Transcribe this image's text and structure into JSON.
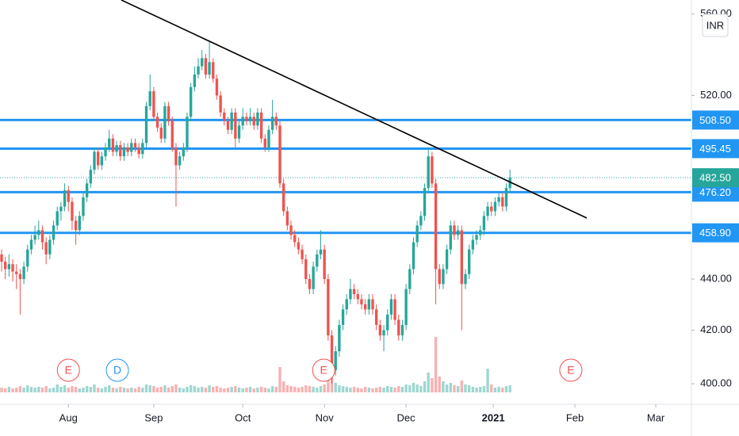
{
  "chart_data": {
    "type": "candlestick",
    "currency": "INR",
    "log_scale": true,
    "up_color": "#26a69a",
    "down_color": "#ef5350",
    "level_color": "#2196f3",
    "ylim": [
      392.6,
      567.2
    ],
    "yticks": [
      {
        "value": 400,
        "label": "400.00"
      },
      {
        "value": 420,
        "label": "420.00"
      },
      {
        "value": 440,
        "label": "440.00"
      },
      {
        "value": 520,
        "label": "520.00"
      },
      {
        "value": 560,
        "label": "560.00"
      }
    ],
    "xlim": [
      -0.43,
      185.9
    ],
    "xticks": [
      {
        "value": 18,
        "label": "Aug"
      },
      {
        "value": 41,
        "label": "Sep"
      },
      {
        "value": 65,
        "label": "Oct"
      },
      {
        "value": 87,
        "label": "Nov"
      },
      {
        "value": 109,
        "label": "Dec"
      },
      {
        "value": 132.5,
        "label": "2021"
      },
      {
        "value": 154.5,
        "label": "Feb"
      },
      {
        "value": 176.3,
        "label": "Mar"
      }
    ],
    "levels": {
      "values": [
        508.5,
        495.45,
        476.2,
        458.9
      ],
      "value_labels": [
        "508.50",
        "495.45",
        "476.20",
        "458.90"
      ]
    },
    "last_price": {
      "value": 482.5,
      "label": "482.50"
    },
    "events": [
      {
        "label": "E",
        "x": 18,
        "color": "#ef5350"
      },
      {
        "label": "D",
        "x": 31.2,
        "color": "#2196f3"
      },
      {
        "label": "E",
        "x": 86.8,
        "color": "#ef5350"
      },
      {
        "label": "E",
        "x": 153.4,
        "color": "#ef5350"
      }
    ],
    "candles": [
      [
        450,
        452,
        443,
        447
      ],
      [
        447,
        449,
        440,
        444
      ],
      [
        444,
        450,
        441,
        446
      ],
      [
        446,
        448,
        439,
        443
      ],
      [
        443,
        446,
        436,
        442
      ],
      [
        442,
        444,
        426,
        440
      ],
      [
        440,
        447,
        438,
        445
      ],
      [
        445,
        454,
        443,
        452
      ],
      [
        452,
        458,
        450,
        456
      ],
      [
        456,
        462,
        454,
        458
      ],
      [
        458,
        464,
        456,
        460
      ],
      [
        460,
        462,
        452,
        455
      ],
      [
        455,
        457,
        446,
        450
      ],
      [
        450,
        458,
        448,
        456
      ],
      [
        456,
        464,
        454,
        462
      ],
      [
        462,
        470,
        460,
        468
      ],
      [
        468,
        472,
        464,
        470
      ],
      [
        470,
        480,
        468,
        477
      ],
      [
        477,
        479,
        468,
        472
      ],
      [
        472,
        474,
        460,
        464
      ],
      [
        464,
        466,
        454,
        460
      ],
      [
        460,
        468,
        458,
        466
      ],
      [
        466,
        476,
        464,
        474
      ],
      [
        474,
        482,
        472,
        480
      ],
      [
        480,
        488,
        478,
        486
      ],
      [
        486,
        496,
        484,
        494
      ],
      [
        494,
        496,
        486,
        488
      ],
      [
        488,
        494,
        486,
        492
      ],
      [
        492,
        498,
        490,
        496
      ],
      [
        496,
        504,
        494,
        500
      ],
      [
        500,
        502,
        492,
        494
      ],
      [
        494,
        499,
        492,
        497
      ],
      [
        497,
        499,
        490,
        492
      ],
      [
        492,
        498,
        490,
        496
      ],
      [
        496,
        498,
        492,
        494
      ],
      [
        494,
        500,
        492,
        498
      ],
      [
        498,
        500,
        494,
        496
      ],
      [
        496,
        498,
        491,
        493
      ],
      [
        493,
        500,
        491,
        498
      ],
      [
        498,
        517,
        496,
        515
      ],
      [
        515,
        530,
        513,
        522
      ],
      [
        522,
        524,
        508,
        510
      ],
      [
        510,
        512,
        503,
        505
      ],
      [
        505,
        507,
        498,
        500
      ],
      [
        500,
        517,
        498,
        515
      ],
      [
        515,
        517,
        506,
        508
      ],
      [
        508,
        510,
        494,
        496
      ],
      [
        496,
        498,
        470,
        488
      ],
      [
        488,
        494,
        486,
        492
      ],
      [
        492,
        498,
        490,
        496
      ],
      [
        496,
        512,
        494,
        510
      ],
      [
        510,
        526,
        508,
        524
      ],
      [
        524,
        534,
        522,
        530
      ],
      [
        530,
        538,
        528,
        534
      ],
      [
        534,
        542,
        532,
        538
      ],
      [
        538,
        540,
        528,
        530
      ],
      [
        530,
        546,
        528,
        536
      ],
      [
        536,
        538,
        526,
        528
      ],
      [
        528,
        530,
        518,
        520
      ],
      [
        520,
        522,
        510,
        512
      ],
      [
        512,
        514,
        506,
        508
      ],
      [
        508,
        510,
        502,
        504
      ],
      [
        504,
        514,
        502,
        512
      ],
      [
        512,
        514,
        496,
        500
      ],
      [
        500,
        508,
        498,
        506
      ],
      [
        506,
        514,
        504,
        510
      ],
      [
        510,
        512,
        506,
        508
      ],
      [
        508,
        514,
        506,
        510
      ],
      [
        510,
        512,
        504,
        506
      ],
      [
        506,
        514,
        504,
        512
      ],
      [
        512,
        514,
        498,
        500
      ],
      [
        500,
        502,
        494,
        496
      ],
      [
        496,
        506,
        494,
        504
      ],
      [
        504,
        518,
        502,
        510
      ],
      [
        510,
        512,
        504,
        506
      ],
      [
        506,
        508,
        478,
        480
      ],
      [
        480,
        482,
        466,
        468
      ],
      [
        468,
        470,
        460,
        462
      ],
      [
        462,
        464,
        456,
        458
      ],
      [
        458,
        460,
        453,
        455
      ],
      [
        455,
        457,
        450,
        452
      ],
      [
        452,
        454,
        446,
        448
      ],
      [
        448,
        450,
        438,
        440
      ],
      [
        440,
        442,
        434,
        436
      ],
      [
        436,
        447,
        434,
        445
      ],
      [
        445,
        452,
        443,
        450
      ],
      [
        450,
        460,
        448,
        452
      ],
      [
        452,
        454,
        438,
        440
      ],
      [
        440,
        442,
        416,
        418
      ],
      [
        418,
        420,
        400,
        405
      ],
      [
        405,
        414,
        403,
        412
      ],
      [
        412,
        424,
        410,
        422
      ],
      [
        422,
        430,
        420,
        428
      ],
      [
        428,
        434,
        426,
        432
      ],
      [
        432,
        440,
        430,
        436
      ],
      [
        436,
        438,
        432,
        434
      ],
      [
        434,
        436,
        430,
        432
      ],
      [
        432,
        434,
        428,
        430
      ],
      [
        430,
        432,
        426,
        428
      ],
      [
        428,
        434,
        426,
        432
      ],
      [
        432,
        434,
        426,
        428
      ],
      [
        428,
        430,
        420,
        422
      ],
      [
        422,
        424,
        416,
        418
      ],
      [
        418,
        422,
        412,
        420
      ],
      [
        420,
        428,
        418,
        426
      ],
      [
        426,
        434,
        424,
        432
      ],
      [
        432,
        434,
        422,
        424
      ],
      [
        424,
        426,
        416,
        418
      ],
      [
        418,
        424,
        416,
        422
      ],
      [
        422,
        438,
        420,
        436
      ],
      [
        436,
        446,
        434,
        444
      ],
      [
        444,
        457,
        442,
        455
      ],
      [
        455,
        464,
        453,
        462
      ],
      [
        462,
        468,
        460,
        466
      ],
      [
        466,
        480,
        464,
        478
      ],
      [
        478,
        496,
        476,
        492
      ],
      [
        492,
        494,
        478,
        480
      ],
      [
        480,
        482,
        430,
        444
      ],
      [
        444,
        446,
        436,
        438
      ],
      [
        438,
        446,
        436,
        444
      ],
      [
        444,
        454,
        442,
        452
      ],
      [
        452,
        464,
        450,
        462
      ],
      [
        462,
        464,
        456,
        458
      ],
      [
        458,
        462,
        456,
        460
      ],
      [
        460,
        462,
        420,
        438
      ],
      [
        438,
        444,
        436,
        442
      ],
      [
        442,
        454,
        440,
        452
      ],
      [
        452,
        458,
        450,
        456
      ],
      [
        456,
        460,
        454,
        458
      ],
      [
        458,
        462,
        456,
        460
      ],
      [
        460,
        468,
        458,
        466
      ],
      [
        466,
        472,
        464,
        470
      ],
      [
        470,
        472,
        466,
        468
      ],
      [
        468,
        474,
        466,
        472
      ],
      [
        472,
        476,
        470,
        474
      ],
      [
        474,
        476,
        468,
        470
      ],
      [
        470,
        480,
        468,
        478
      ],
      [
        478,
        486,
        476,
        482.5
      ]
    ],
    "volumes": [
      6,
      5,
      7,
      5,
      6,
      8,
      6,
      9,
      7,
      6,
      7,
      6,
      8,
      5,
      6,
      10,
      7,
      9,
      6,
      8,
      7,
      5,
      6,
      8,
      7,
      10,
      6,
      5,
      7,
      9,
      6,
      5,
      7,
      6,
      5,
      6,
      5,
      7,
      6,
      10,
      9,
      8,
      6,
      7,
      9,
      6,
      8,
      10,
      6,
      5,
      7,
      9,
      8,
      6,
      7,
      6,
      9,
      7,
      8,
      6,
      5,
      6,
      7,
      8,
      6,
      5,
      6,
      7,
      5,
      6,
      7,
      6,
      5,
      8,
      7,
      32,
      14,
      9,
      8,
      7,
      6,
      7,
      9,
      8,
      7,
      6,
      8,
      10,
      16,
      20,
      12,
      9,
      8,
      7,
      6,
      7,
      6,
      5,
      7,
      6,
      5,
      6,
      7,
      6,
      8,
      7,
      6,
      8,
      7,
      10,
      9,
      12,
      10,
      8,
      14,
      25,
      18,
      70,
      20,
      14,
      10,
      12,
      9,
      8,
      15,
      10,
      9,
      7,
      6,
      7,
      8,
      30,
      10,
      6,
      7,
      6,
      8,
      9
    ]
  }
}
